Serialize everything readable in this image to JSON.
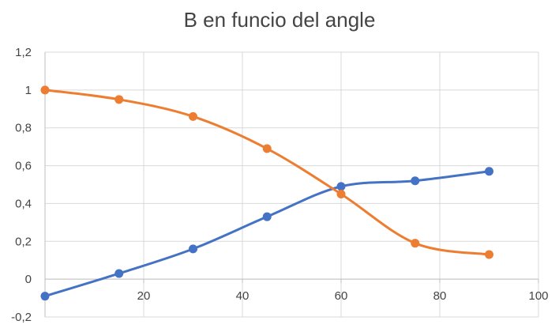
{
  "chart_data": {
    "type": "line",
    "title": "B en funcio del angle",
    "xlabel": "",
    "ylabel": "",
    "xlim": [
      0,
      100
    ],
    "ylim": [
      -0.2,
      1.2
    ],
    "x_ticks": [
      20,
      40,
      60,
      80,
      100
    ],
    "x_tick_labels": [
      "20",
      "40",
      "60",
      "80",
      "100"
    ],
    "y_ticks": [
      -0.2,
      0,
      0.2,
      0.4,
      0.6,
      0.8,
      1,
      1.2
    ],
    "y_tick_labels": [
      "-0,2",
      "0",
      "0,2",
      "0,4",
      "0,6",
      "0,8",
      "1",
      "1,2"
    ],
    "grid": true,
    "smooth": true,
    "series": [
      {
        "color": "#4472c4",
        "x": [
          0,
          15,
          30,
          45,
          60,
          75,
          90
        ],
        "values": [
          -0.09,
          0.03,
          0.16,
          0.33,
          0.49,
          0.52,
          0.57
        ]
      },
      {
        "color": "#ed7d31",
        "x": [
          0,
          15,
          30,
          45,
          60,
          75,
          90
        ],
        "values": [
          1.0,
          0.95,
          0.86,
          0.69,
          0.45,
          0.19,
          0.13
        ]
      }
    ]
  }
}
